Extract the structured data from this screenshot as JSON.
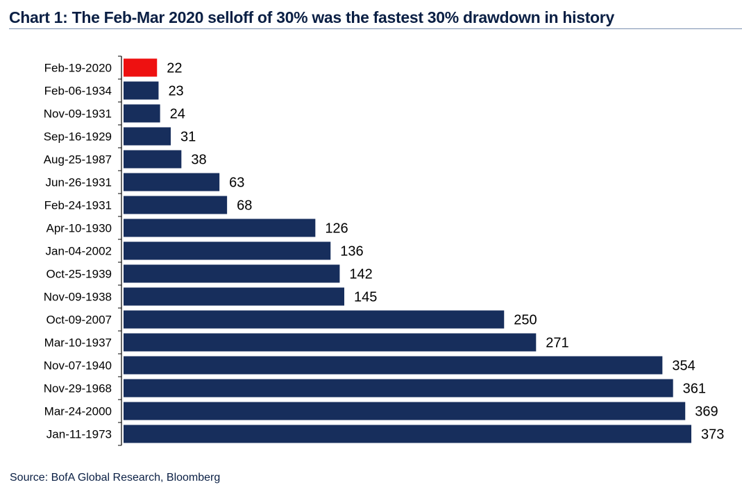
{
  "header": {
    "title": "Chart 1: The Feb-Mar 2020 selloff of 30% was the fastest 30% drawdown in history"
  },
  "footer": {
    "source": "Source: BofA Global Research, Bloomberg"
  },
  "colors": {
    "bar": "#172e5c",
    "highlight": "#ee1111",
    "title": "#0a1f44",
    "axis": "#000000"
  },
  "chart_data": {
    "type": "bar",
    "orientation": "horizontal",
    "title": "Chart 1: The Feb-Mar 2020 selloff of 30% was the fastest 30% drawdown in history",
    "xlabel": "",
    "ylabel": "",
    "grid": false,
    "legend": "none",
    "xlim": [
      0,
      373
    ],
    "highlight_category": "Feb-19-2020",
    "categories": [
      "Feb-19-2020",
      "Feb-06-1934",
      "Nov-09-1931",
      "Sep-16-1929",
      "Aug-25-1987",
      "Jun-26-1931",
      "Feb-24-1931",
      "Apr-10-1930",
      "Jan-04-2002",
      "Oct-25-1939",
      "Nov-09-1938",
      "Oct-09-2007",
      "Mar-10-1937",
      "Nov-07-1940",
      "Nov-29-1968",
      "Mar-24-2000",
      "Jan-11-1973"
    ],
    "values": [
      22,
      23,
      24,
      31,
      38,
      63,
      68,
      126,
      136,
      142,
      145,
      250,
      271,
      354,
      361,
      369,
      373
    ],
    "data_labels": [
      "22",
      "23",
      "24",
      "31",
      "38",
      "63",
      "68",
      "126",
      "136",
      "142",
      "145",
      "250",
      "271",
      "354",
      "361",
      "369",
      "373"
    ]
  }
}
